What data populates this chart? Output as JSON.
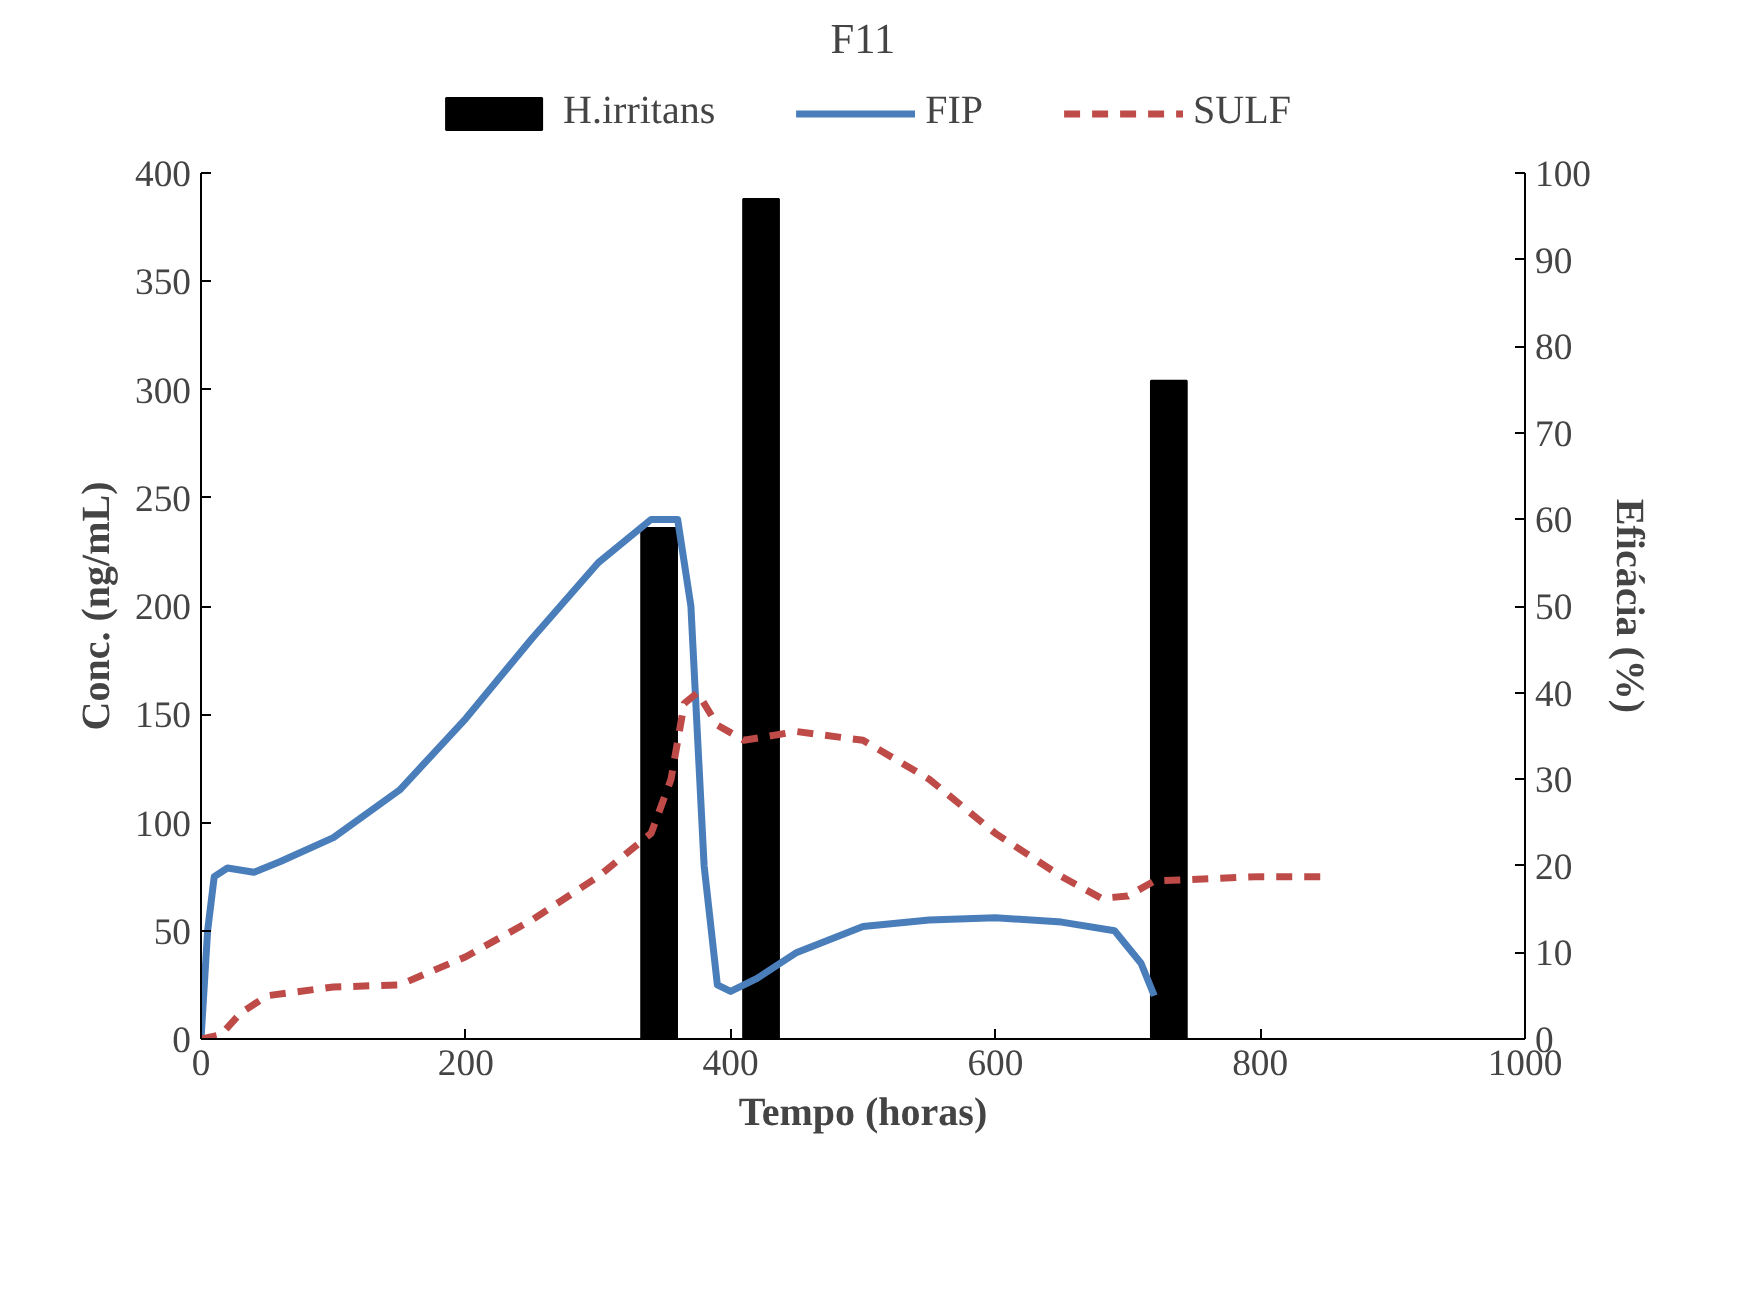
{
  "chart_data": {
    "type": "line",
    "title": "F11",
    "xlabel": "Tempo (horas)",
    "ylabel": "Conc. (ng/mL)",
    "y2label": "Eficácia (%)",
    "xlim": [
      0,
      1000
    ],
    "xticks": [
      0,
      200,
      400,
      600,
      800,
      1000
    ],
    "ylim": [
      0,
      400
    ],
    "yticks": [
      0,
      50,
      100,
      150,
      200,
      250,
      300,
      350,
      400
    ],
    "y2lim": [
      0,
      100
    ],
    "y2ticks": [
      0,
      10,
      20,
      30,
      40,
      50,
      60,
      70,
      80,
      90,
      100
    ],
    "grid": false,
    "legend": "top",
    "series": [
      {
        "name": "H.irritans",
        "type": "bar",
        "axis": "y2",
        "color": "#000000",
        "x": [
          346,
          423,
          731
        ],
        "values": [
          59,
          97,
          76
        ]
      },
      {
        "name": "FIP",
        "color": "#4a7ebb",
        "line_style": "solid",
        "x": [
          0,
          5,
          10,
          20,
          40,
          60,
          100,
          150,
          200,
          250,
          300,
          340,
          360,
          370,
          380,
          390,
          400,
          420,
          450,
          500,
          550,
          600,
          650,
          690,
          710,
          720
        ],
        "values": [
          0,
          50,
          75,
          79,
          77,
          82,
          93,
          115,
          148,
          185,
          220,
          240,
          240,
          200,
          80,
          25,
          22,
          28,
          40,
          52,
          55,
          56,
          54,
          50,
          35,
          20
        ]
      },
      {
        "name": "SULF",
        "color": "#be4b48",
        "line_style": "dashed",
        "x": [
          0,
          15,
          30,
          50,
          100,
          150,
          200,
          250,
          300,
          340,
          355,
          365,
          375,
          390,
          410,
          450,
          500,
          550,
          600,
          650,
          680,
          700,
          720,
          800,
          850
        ],
        "values": [
          0,
          2,
          12,
          20,
          24,
          25,
          38,
          55,
          75,
          95,
          120,
          155,
          160,
          145,
          138,
          142,
          138,
          120,
          95,
          75,
          65,
          66,
          73,
          75,
          75
        ]
      }
    ]
  }
}
